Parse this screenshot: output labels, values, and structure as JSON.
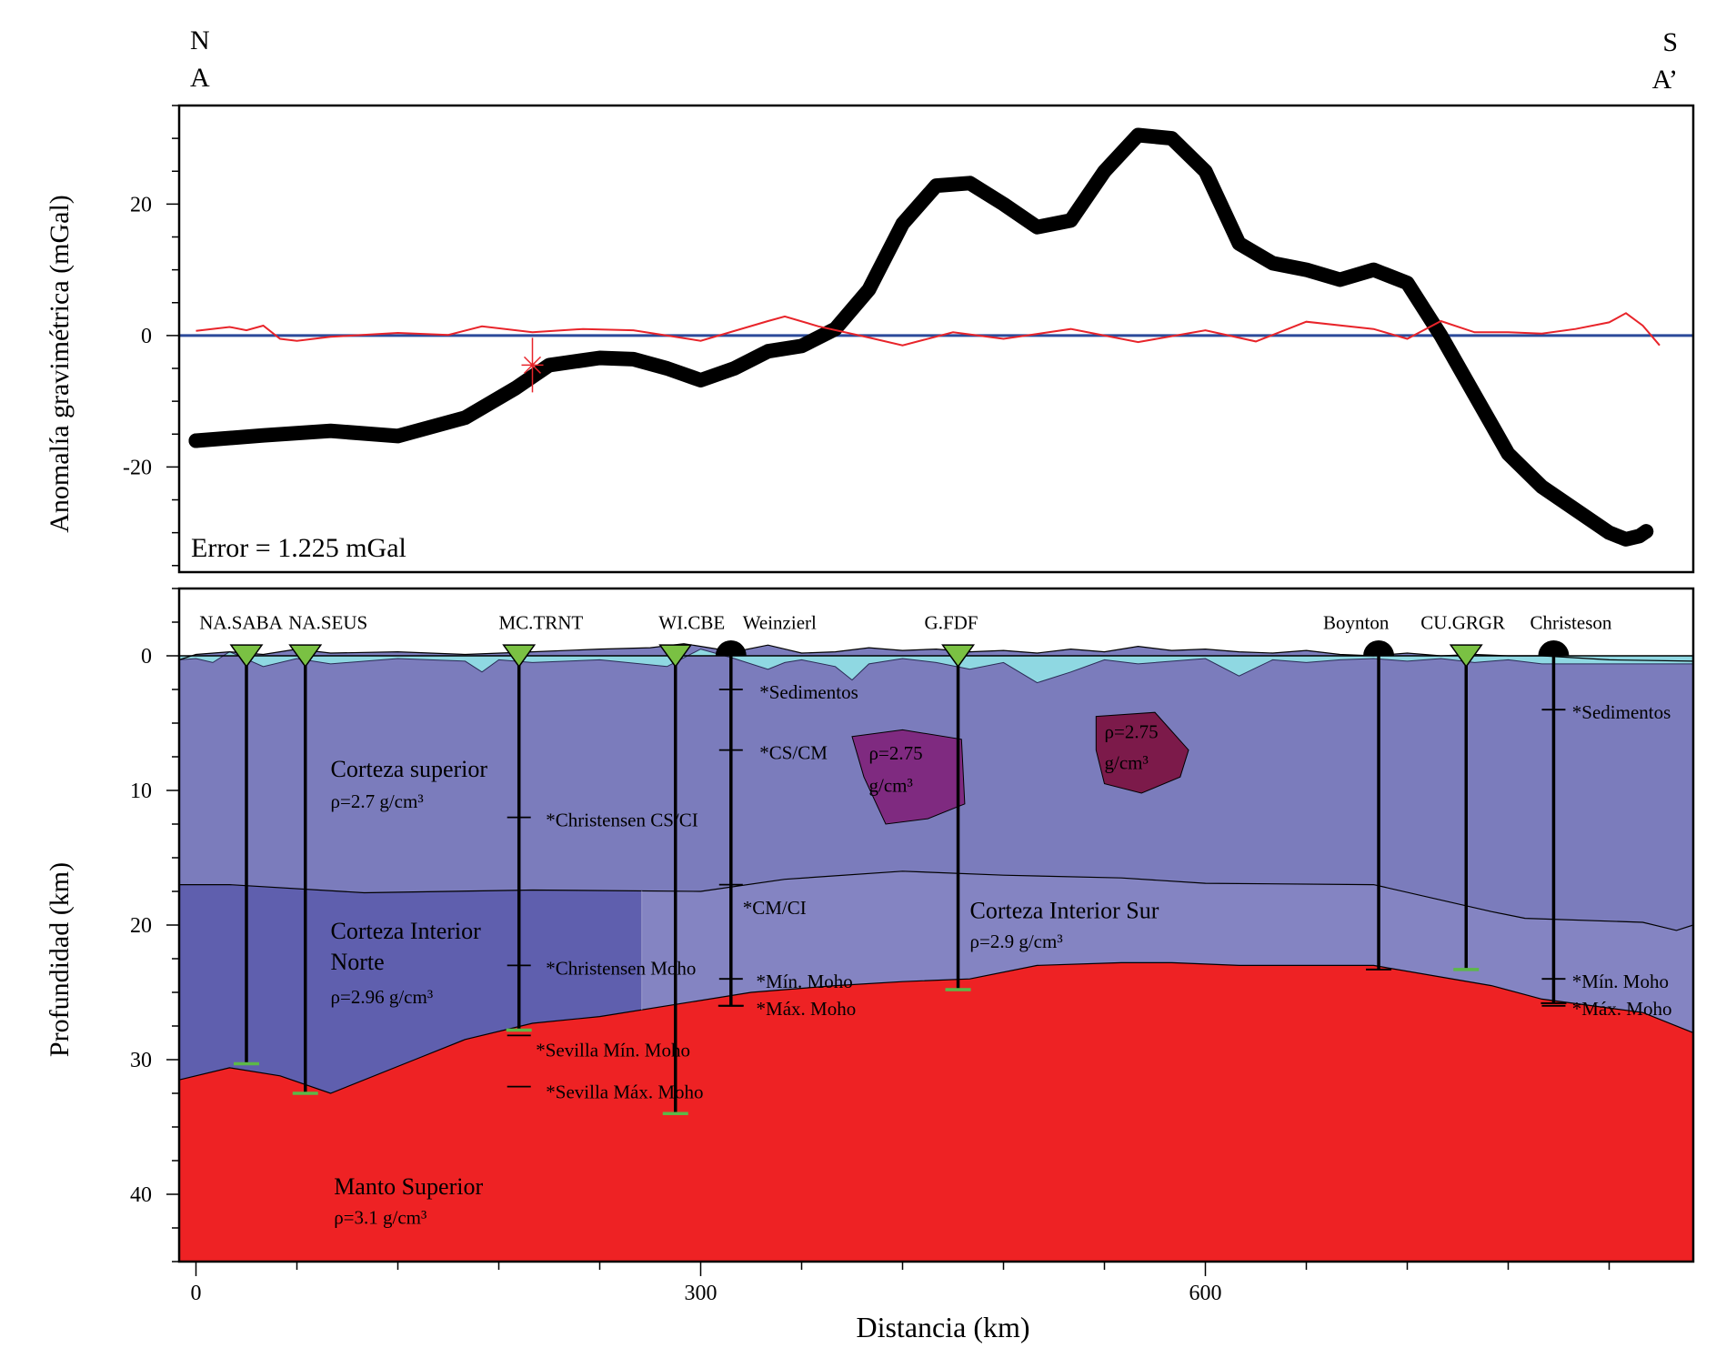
{
  "colors": {
    "frame": "#000000",
    "observed": "#000000",
    "residual": "#e8242a",
    "zero_line": "#2b4a9a",
    "water": "#8fd8e2",
    "upper_crust": "#7b7cbc",
    "north_crust": "#5f5fae",
    "south_crust": "#8484c2",
    "mantle": "#ee2224",
    "body1": "#7f2a80",
    "body2": "#7c1a4a",
    "station_triangle": "#7ac143",
    "moho_tick": "#5cb848"
  },
  "orientation": {
    "north_letter": "N",
    "north_point": "A",
    "south_letter": "S",
    "south_point": "A’"
  },
  "chart_data": [
    {
      "type": "line",
      "title": "",
      "ylabel": "Anomalía gravimétrica (mGal)",
      "xlabel": "",
      "xlim": [
        -10,
        890
      ],
      "ylim": [
        -36,
        35
      ],
      "yticks": [
        20,
        0,
        -20
      ],
      "ytick_labels": [
        "20",
        "0",
        "-20"
      ],
      "error_label": "Error = 1.225 mGal",
      "series": [
        {
          "name": "observed",
          "x": [
            0,
            40,
            80,
            120,
            160,
            190,
            210,
            240,
            260,
            280,
            300,
            320,
            340,
            360,
            380,
            400,
            420,
            440,
            460,
            480,
            500,
            520,
            540,
            560,
            580,
            600,
            620,
            640,
            660,
            680,
            700,
            720,
            740,
            760,
            780,
            800,
            820,
            840,
            850,
            858,
            862
          ],
          "y": [
            -16,
            -15.2,
            -14.5,
            -15.3,
            -12.5,
            -8,
            -4.5,
            -3.4,
            -3.6,
            -5,
            -6.8,
            -5,
            -2.4,
            -1.6,
            1,
            7,
            17,
            22.8,
            23.2,
            20,
            16.5,
            17.5,
            25,
            30.5,
            30,
            25,
            14,
            11,
            10,
            8.5,
            10,
            8,
            0,
            -9,
            -18,
            -23,
            -26.5,
            -30,
            -31,
            -30.5,
            -29.8
          ]
        },
        {
          "name": "residual",
          "x": [
            0,
            20,
            30,
            40,
            50,
            60,
            80,
            120,
            150,
            170,
            200,
            230,
            260,
            300,
            340,
            350,
            370,
            400,
            420,
            450,
            480,
            520,
            560,
            600,
            630,
            660,
            700,
            720,
            740,
            760,
            780,
            800,
            820,
            840,
            850,
            860,
            870
          ],
          "y": [
            0.7,
            1.3,
            0.8,
            1.5,
            -0.5,
            -0.8,
            -0.2,
            0.4,
            0.1,
            1.4,
            0.5,
            1.0,
            0.8,
            -0.8,
            2.2,
            2.9,
            1.4,
            -0.3,
            -1.5,
            0.5,
            -0.5,
            1.0,
            -1.0,
            0.8,
            -0.9,
            2.1,
            1.0,
            -0.5,
            2.2,
            0.5,
            0.5,
            0.3,
            1.0,
            2.0,
            3.4,
            1.5,
            -1.5
          ]
        }
      ],
      "markers": [
        {
          "name": "profile start",
          "x": 0,
          "y": -16
        },
        {
          "name": "profile end",
          "x": 862,
          "y": -29.8
        }
      ],
      "annotations": [
        {
          "name": "red cross marker",
          "x": 200,
          "y": -4.5
        }
      ]
    },
    {
      "type": "area",
      "title": "",
      "ylabel": "Profundidad (km)",
      "xlabel": "Distancia (km)",
      "xlim": [
        -10,
        890
      ],
      "ylim": [
        -5,
        45
      ],
      "xticks": [
        0,
        300,
        600
      ],
      "xtick_labels": [
        "0",
        "300",
        "600"
      ],
      "yticks": [
        0,
        10,
        20,
        30,
        40
      ],
      "ytick_labels": [
        "0",
        "10",
        "20",
        "30",
        "40"
      ],
      "boundaries": {
        "surface": {
          "x": [
            -10,
            890
          ],
          "y": [
            0,
            0
          ]
        },
        "upper_crust_base": {
          "x": [
            -10,
            20,
            100,
            200,
            300,
            350,
            420,
            480,
            550,
            600,
            700,
            770,
            790,
            860,
            880,
            890
          ],
          "y": [
            17,
            17,
            17.6,
            17.4,
            17.5,
            16.6,
            16,
            16.3,
            16.5,
            16.9,
            17,
            19,
            19.5,
            19.8,
            20.4,
            20
          ]
        },
        "moho": {
          "x": [
            -10,
            20,
            50,
            80,
            130,
            160,
            200,
            240,
            290,
            330,
            380,
            420,
            460,
            500,
            550,
            580,
            620,
            700,
            770,
            800,
            860,
            890
          ],
          "y": [
            31.5,
            30.6,
            31.2,
            32.5,
            30,
            28.5,
            27.3,
            26.8,
            25.8,
            25,
            24.5,
            24.2,
            24,
            23,
            22.8,
            22.8,
            23,
            23,
            24.5,
            25.5,
            26.5,
            28
          ]
        },
        "north_south_contact_x": 265
      },
      "sediment_profile": {
        "x": [
          -10,
          0,
          10,
          20,
          40,
          60,
          80,
          120,
          160,
          170,
          180,
          200,
          240,
          280,
          300,
          320,
          340,
          350,
          360,
          380,
          390,
          400,
          420,
          440,
          460,
          480,
          500,
          520,
          540,
          560,
          600,
          620,
          640,
          660,
          680,
          700,
          720,
          740,
          760,
          780,
          800,
          840,
          890
        ],
        "y": [
          0.3,
          0.2,
          0.5,
          -0.3,
          0.8,
          0.2,
          0.6,
          0.2,
          0.4,
          1.2,
          0.3,
          0.5,
          0.3,
          0.8,
          -0.5,
          0.2,
          1.0,
          0.5,
          0.3,
          0.8,
          1.8,
          0.6,
          0.2,
          0.5,
          1.0,
          0.5,
          2.0,
          1.2,
          0.3,
          0.6,
          0.2,
          1.5,
          0.3,
          0.5,
          0.3,
          0.2,
          0.4,
          0.2,
          0.5,
          0.3,
          0.6,
          0.6,
          0.6
        ]
      },
      "surface_topography": {
        "x": [
          -10,
          0,
          20,
          40,
          60,
          80,
          120,
          160,
          200,
          240,
          270,
          290,
          300,
          320,
          340,
          350,
          360,
          380,
          400,
          420,
          440,
          460,
          480,
          500,
          520,
          540,
          560,
          580,
          600,
          620,
          640,
          660,
          680,
          700,
          720,
          740,
          760,
          780,
          800,
          840,
          890
        ],
        "y": [
          0.3,
          -0.1,
          -0.3,
          -0.1,
          -0.5,
          -0.2,
          -0.3,
          -0.1,
          -0.3,
          -0.5,
          -0.6,
          -0.9,
          -0.7,
          -0.3,
          -0.8,
          -0.5,
          -0.2,
          -0.3,
          -0.6,
          -0.4,
          -0.5,
          -0.3,
          -0.4,
          -0.2,
          -0.5,
          -0.3,
          -0.7,
          -0.4,
          -0.5,
          -0.3,
          -0.2,
          -0.4,
          -0.1,
          0,
          -0.2,
          0,
          -0.1,
          0,
          0,
          0.3,
          0.4
        ]
      },
      "layers": [
        {
          "name": "Corteza superior",
          "density": "ρ=2.7 g/cm³",
          "label_x": 80,
          "label_y": 9,
          "density_y": 11.3
        },
        {
          "name_lines": [
            "Corteza Interior",
            "Norte"
          ],
          "density": "ρ=2.96 g/cm³",
          "label_x": 80,
          "label_y": 21,
          "density_y": 25.8
        },
        {
          "name": "Corteza Interior Sur",
          "density": "ρ=2.9 g/cm³",
          "label_x": 460,
          "label_y": 19.5,
          "density_y": 21.7
        },
        {
          "name": "Manto Superior",
          "density": "ρ=3.1 g/cm³",
          "label_x": 82,
          "label_y": 40,
          "density_y": 42.2
        }
      ],
      "bodies": [
        {
          "name": "body-west",
          "label_lines": [
            "ρ=2.75",
            "g/cm³"
          ],
          "polygon_x": [
            390,
            420,
            455,
            457,
            435,
            410,
            397
          ],
          "polygon_y": [
            6,
            5.5,
            6.2,
            11,
            12.1,
            12.5,
            9
          ],
          "label_x": 400,
          "label_y": [
            7.7,
            10.1
          ]
        },
        {
          "name": "body-east",
          "label_lines": [
            "ρ=2.75",
            "g/cm³"
          ],
          "polygon_x": [
            535,
            570,
            590,
            585,
            562,
            540,
            535
          ],
          "polygon_y": [
            4.5,
            4.2,
            7,
            9,
            10.2,
            9.5,
            7
          ],
          "label_x": 540,
          "label_y": [
            6.1,
            8.4
          ]
        }
      ],
      "stations": [
        {
          "name": "NA.SABA",
          "x": 30,
          "symbol": "triangle",
          "moho": 30.3,
          "label_x": 2
        },
        {
          "name": "NA.SEUS",
          "x": 65,
          "symbol": "triangle",
          "moho": 32.5,
          "label_x": 55
        },
        {
          "name": "MC.TRNT",
          "x": 192,
          "symbol": "triangle",
          "moho": 27.8,
          "label_x": 180
        },
        {
          "name": "WI.CBE",
          "x": 285,
          "symbol": "triangle",
          "moho": 34,
          "label_x": 275
        },
        {
          "name": "Weinzierl",
          "x": 318,
          "symbol": "semicircle",
          "moho": 26,
          "label_x": 325
        },
        {
          "name": "G.FDF",
          "x": 453,
          "symbol": "triangle",
          "moho": 24.8,
          "label_x": 433
        },
        {
          "name": "Boynton",
          "x": 703,
          "symbol": "semicircle",
          "moho": 23.3,
          "label_x": 670
        },
        {
          "name": "CU.GRGR",
          "x": 755,
          "symbol": "triangle",
          "moho": 23.3,
          "label_x": 728
        },
        {
          "name": "Christeson",
          "x": 807,
          "symbol": "semicircle",
          "moho": 25.8,
          "label_x": 793
        }
      ],
      "depth_marks": [
        {
          "x": 318,
          "y": 2.5,
          "label": "*Sedimentos",
          "label_x": 335,
          "label_y": 2.7
        },
        {
          "x": 318,
          "y": 7,
          "label": "*CS/CM",
          "label_x": 335,
          "label_y": 7.2
        },
        {
          "x": 318,
          "y": 17,
          "label": "*CM/CI",
          "label_x": 325,
          "label_y": 18.7
        },
        {
          "x": 318,
          "y": 24,
          "label": "*Mín. Moho",
          "label_x": 333,
          "label_y": 24.2
        },
        {
          "x": 318,
          "y": 26,
          "label": "*Máx. Moho",
          "label_x": 333,
          "label_y": 26.2
        },
        {
          "x": 192,
          "y": 12,
          "label": "*Christensen CS/CI",
          "label_x": 208,
          "label_y": 12.2
        },
        {
          "x": 192,
          "y": 23,
          "label": "*Christensen Moho",
          "label_x": 208,
          "label_y": 23.2
        },
        {
          "x": 192,
          "y": 28.2,
          "label": "*Sevilla Mín. Moho",
          "label_x": 202,
          "label_y": 29.3
        },
        {
          "x": 192,
          "y": 32,
          "label": "*Sevilla Máx. Moho",
          "label_x": 208,
          "label_y": 32.4
        },
        {
          "x": 807,
          "y": 4,
          "label": "*Sedimentos",
          "label_x": 818,
          "label_y": 4.2
        },
        {
          "x": 807,
          "y": 24,
          "label": "*Mín. Moho",
          "label_x": 818,
          "label_y": 24.2
        },
        {
          "x": 807,
          "y": 26,
          "label": "*Máx. Moho",
          "label_x": 818,
          "label_y": 26.2
        }
      ]
    }
  ]
}
